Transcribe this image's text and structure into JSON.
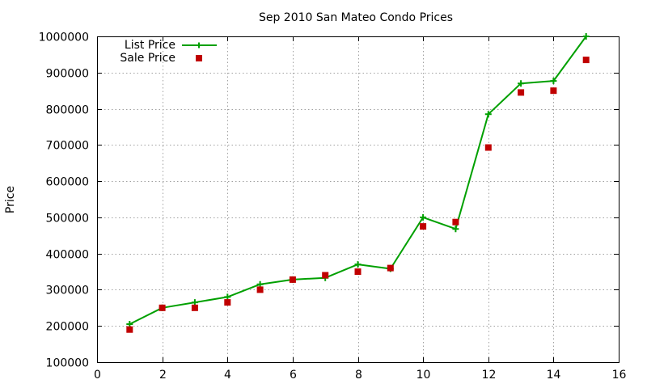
{
  "chart_data": {
    "type": "line",
    "title": "Sep 2010 San Mateo Condo Prices",
    "xlabel": "",
    "ylabel": "Price",
    "xlim": [
      0,
      16
    ],
    "ylim": [
      100000,
      1000000
    ],
    "x_ticks": [
      0,
      2,
      4,
      6,
      8,
      10,
      12,
      14,
      16
    ],
    "y_ticks": [
      100000,
      200000,
      300000,
      400000,
      500000,
      600000,
      700000,
      800000,
      900000,
      1000000
    ],
    "grid": true,
    "legend_position": "top-left",
    "series": [
      {
        "name": "List Price",
        "style": "line+plus",
        "color": "#00a000",
        "x": [
          1,
          2,
          3,
          4,
          5,
          6,
          7,
          8,
          9,
          10,
          11,
          12,
          13,
          14,
          15
        ],
        "values": [
          205000,
          250000,
          265000,
          280000,
          315000,
          328000,
          333000,
          370000,
          358000,
          500000,
          468000,
          785000,
          870000,
          877000,
          1000000
        ]
      },
      {
        "name": "Sale Price",
        "style": "square",
        "color": "#c00000",
        "x": [
          1,
          2,
          3,
          4,
          5,
          6,
          7,
          8,
          9,
          10,
          11,
          12,
          13,
          14,
          15
        ],
        "values": [
          190000,
          250000,
          250000,
          265000,
          300000,
          328000,
          340000,
          350000,
          360000,
          475000,
          487000,
          693000,
          845000,
          850000,
          935000
        ]
      }
    ]
  }
}
